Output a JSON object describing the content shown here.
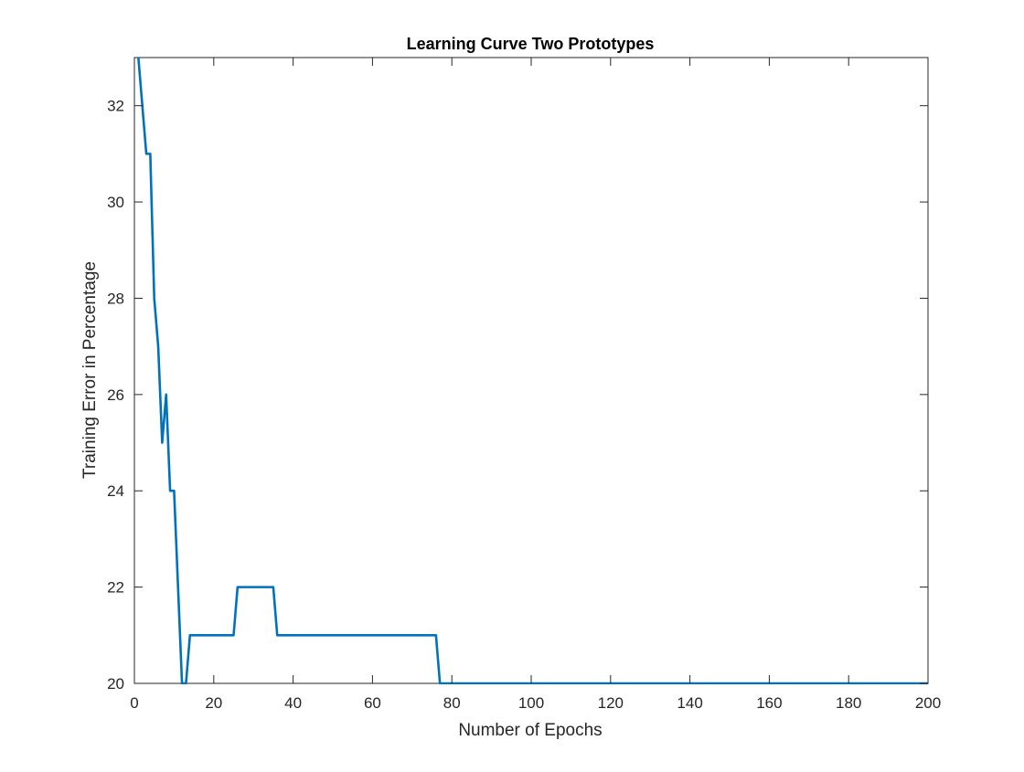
{
  "chart_data": {
    "type": "line",
    "title": "Learning Curve Two Prototypes",
    "xlabel": "Number of Epochs",
    "ylabel": "Training Error in Percentage",
    "xlim": [
      0,
      200
    ],
    "ylim": [
      20,
      33
    ],
    "xticks": [
      0,
      20,
      40,
      60,
      80,
      100,
      120,
      140,
      160,
      180,
      200
    ],
    "yticks": [
      20,
      22,
      24,
      26,
      28,
      30,
      32
    ],
    "grid": false,
    "series": [
      {
        "color": "#0072BD",
        "x": [
          1,
          2,
          3,
          4,
          5,
          6,
          7,
          8,
          9,
          10,
          11,
          12,
          13,
          14,
          15,
          20,
          25,
          26,
          30,
          35,
          36,
          40,
          50,
          60,
          70,
          76,
          77,
          80,
          100,
          120,
          140,
          160,
          180,
          200
        ],
        "y": [
          33,
          32,
          31,
          31,
          28,
          27,
          25,
          26,
          24,
          24,
          22,
          20,
          20,
          21,
          21,
          21,
          21,
          22,
          22,
          22,
          21,
          21,
          21,
          21,
          21,
          21,
          20,
          20,
          20,
          20,
          20,
          20,
          20,
          20
        ]
      }
    ]
  }
}
